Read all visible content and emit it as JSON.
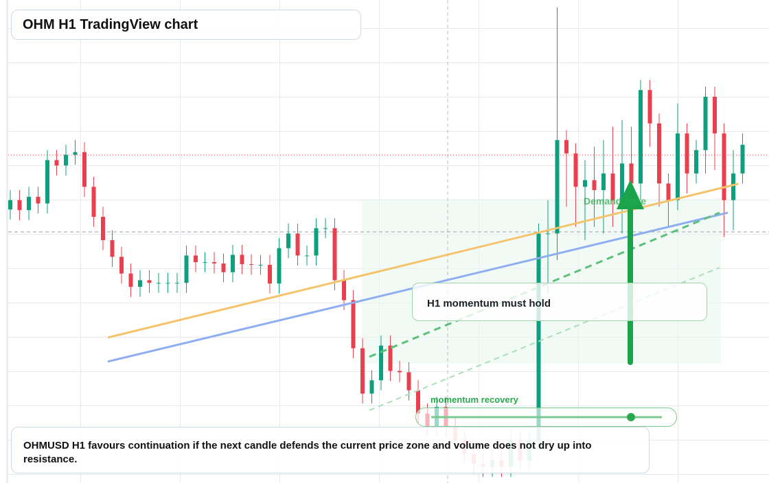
{
  "chart_data": {
    "type": "candlestick",
    "title": "OHM H1 TradingView chart",
    "up_color": "#0e9f7e",
    "down_color": "#e8404f",
    "ylim": [
      -2,
      70.4
    ],
    "open": [
      39.0,
      40.4,
      38.9,
      40.9,
      39.9,
      46.4,
      45.6,
      47.2,
      47.6,
      42.4,
      37.9,
      34.4,
      31.9,
      29.4,
      27.4,
      28.4,
      28.0,
      28.0,
      28.0,
      28.0,
      32.1,
      31.1,
      31.1,
      30.9,
      29.6,
      32.2,
      30.8,
      30.7,
      30.7,
      27.9,
      33.2,
      35.4,
      32.1,
      32.1,
      36.2,
      36.2,
      28.4,
      25.4,
      18.2,
      11.4,
      13.4,
      18.6,
      14.8,
      14.6,
      11.9,
      8.4,
      6.4,
      9.4,
      6.4,
      4.4,
      2.4,
      0.9,
      0.4,
      1.4,
      0.4,
      4.4,
      1.4,
      4.4,
      35.4,
      35.4,
      49.4,
      47.4,
      42.4,
      43.4,
      41.9,
      44.4,
      40.4,
      45.9,
      42.9,
      56.9,
      51.9,
      42.9,
      40.4,
      50.4,
      44.4,
      47.9,
      55.9,
      50.4,
      40.4,
      44.4
    ],
    "high": [
      41.9,
      41.9,
      42.4,
      42.4,
      47.9,
      47.9,
      48.7,
      49.4,
      49.1,
      43.9,
      39.4,
      35.9,
      33.4,
      30.9,
      29.9,
      29.9,
      29.5,
      29.5,
      29.5,
      33.6,
      33.6,
      32.6,
      32.6,
      32.4,
      33.7,
      33.7,
      32.3,
      32.2,
      32.2,
      34.7,
      36.9,
      36.9,
      33.6,
      37.7,
      37.7,
      37.7,
      29.9,
      26.9,
      19.7,
      14.9,
      20.1,
      20.1,
      16.3,
      16.1,
      13.4,
      9.9,
      10.9,
      10.9,
      7.9,
      5.9,
      3.9,
      2.4,
      2.9,
      2.9,
      5.9,
      5.9,
      5.9,
      36.9,
      40.4,
      69.3,
      50.9,
      48.9,
      46.4,
      48.4,
      49.4,
      51.4,
      52.4,
      51.4,
      58.4,
      58.4,
      53.4,
      44.4,
      54.9,
      51.9,
      49.4,
      57.4,
      57.4,
      51.9,
      47.9,
      50.4
    ],
    "low": [
      37.5,
      37.4,
      37.4,
      38.4,
      38.4,
      44.1,
      44.1,
      45.7,
      40.9,
      36.4,
      32.9,
      30.4,
      27.9,
      25.9,
      25.9,
      26.5,
      26.5,
      26.5,
      26.5,
      26.5,
      29.6,
      29.6,
      29.4,
      28.1,
      28.1,
      29.3,
      29.2,
      29.2,
      26.4,
      26.4,
      31.7,
      30.6,
      30.6,
      30.6,
      34.7,
      26.9,
      23.9,
      16.7,
      9.9,
      9.9,
      11.9,
      13.3,
      13.1,
      10.4,
      6.9,
      4.9,
      4.9,
      4.9,
      2.9,
      0.9,
      -0.6,
      -1.1,
      -1.1,
      -1.1,
      -1.1,
      -0.1,
      -0.1,
      2.9,
      26.4,
      31.4,
      39.4,
      36.4,
      34.4,
      36.4,
      35.4,
      36.4,
      35.4,
      38.4,
      40.4,
      48.4,
      39.4,
      36.4,
      38.9,
      41.4,
      42.9,
      44.4,
      44.9,
      34.9,
      35.9,
      42.9
    ],
    "close": [
      40.4,
      38.9,
      40.9,
      39.9,
      46.4,
      45.6,
      47.2,
      47.6,
      42.4,
      37.9,
      34.4,
      31.9,
      29.4,
      27.4,
      28.4,
      28.0,
      28.0,
      28.0,
      28.0,
      32.1,
      31.1,
      31.1,
      30.9,
      29.6,
      32.2,
      30.8,
      30.7,
      30.7,
      27.9,
      33.2,
      35.4,
      32.1,
      32.1,
      36.2,
      36.2,
      28.4,
      25.4,
      18.2,
      11.4,
      13.4,
      18.6,
      14.8,
      14.6,
      11.9,
      8.4,
      6.4,
      9.4,
      6.4,
      4.4,
      2.4,
      0.9,
      0.4,
      1.4,
      0.4,
      4.4,
      1.4,
      4.4,
      35.4,
      35.4,
      49.4,
      47.4,
      42.4,
      43.4,
      41.9,
      44.4,
      40.4,
      45.9,
      42.9,
      56.9,
      51.9,
      42.9,
      40.4,
      50.4,
      44.4,
      47.9,
      55.9,
      50.4,
      40.4,
      44.4,
      48.7
    ],
    "annotations": {
      "zone": "Demand zone",
      "hold": "H1 momentum must hold",
      "recovery": "momentum recovery",
      "note": "OHMUSD H1 favours continuation if the next candle defends the current price zone and volume does not dry up into resistance."
    }
  }
}
